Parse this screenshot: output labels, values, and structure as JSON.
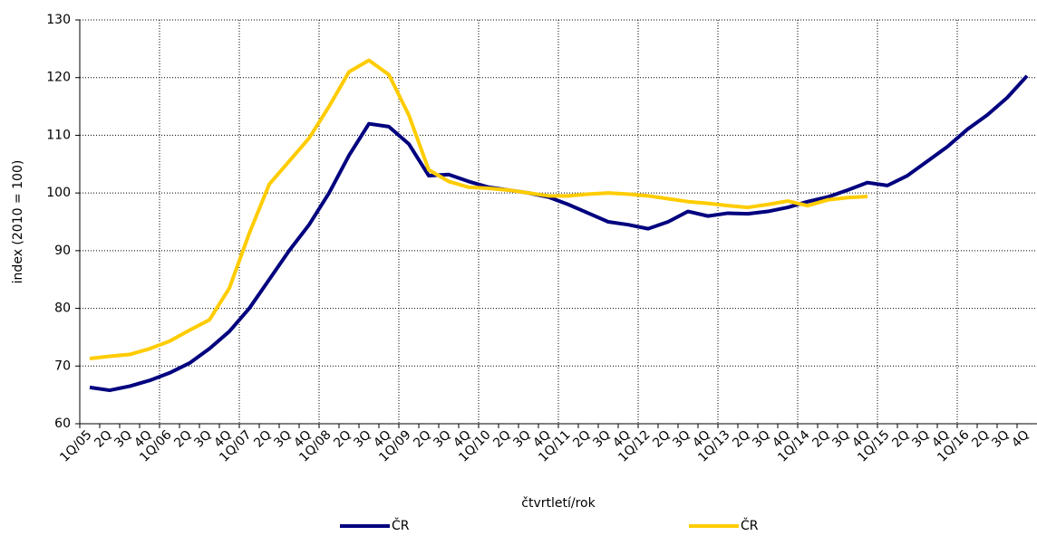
{
  "chart_data": {
    "type": "line",
    "y_label": "index (2010 = 100)",
    "x_label": "čtvrtletí/rok",
    "categories": [
      "1Q/05",
      "2Q",
      "3Q",
      "4Q",
      "1Q/06",
      "2Q",
      "3Q",
      "4Q",
      "1Q/07",
      "2Q",
      "3Q",
      "4Q",
      "1Q/08",
      "2Q",
      "3Q",
      "4Q",
      "1Q/09",
      "2Q",
      "3Q",
      "4Q",
      "1Q/10",
      "2Q",
      "3Q",
      "4Q",
      "1Q/11",
      "2Q",
      "3Q",
      "4Q",
      "1Q/12",
      "2Q",
      "3Q",
      "4Q",
      "1Q/13",
      "2Q",
      "3Q",
      "4Q",
      "1Q/14",
      "2Q",
      "3Q",
      "4Q",
      "1Q/15",
      "2Q",
      "3Q",
      "4Q",
      "1Q/16",
      "2Q",
      "3Q",
      "4Q"
    ],
    "series": [
      {
        "name": "ČR",
        "color": "#00007f",
        "values": [
          66.3,
          65.8,
          66.5,
          67.5,
          68.8,
          70.5,
          73,
          76,
          80,
          85,
          90,
          94.5,
          100,
          106.5,
          112,
          111.5,
          108.5,
          103,
          103.2,
          102,
          101,
          100.5,
          100,
          99.3,
          98,
          96.5,
          95,
          94.5,
          93.8,
          95,
          96.8,
          96,
          96.5,
          96.4,
          96.8,
          97.5,
          98.5,
          99.3,
          100.5,
          101.8,
          101.3,
          103,
          105.5,
          108,
          111,
          113.5,
          116.5,
          120.3
        ]
      },
      {
        "name": "ČR",
        "color": "#ffcc00",
        "values": [
          71.3,
          71.7,
          72,
          73,
          74.3,
          76.2,
          78,
          83.5,
          93,
          101.5,
          105.5,
          109.5,
          115,
          121,
          123,
          120.5,
          113.5,
          104,
          102,
          101,
          100.8,
          100.5,
          100,
          99.5,
          99.5,
          99.8,
          100,
          99.8,
          99.5,
          99,
          98.5,
          98.2,
          97.8,
          97.5,
          98,
          98.6,
          97.8,
          98.8,
          99.2,
          99.4,
          null,
          null,
          null,
          null,
          null,
          null,
          null,
          null
        ]
      }
    ],
    "ylim": [
      60,
      130
    ],
    "yticks": [
      60,
      70,
      80,
      90,
      100,
      110,
      120,
      130
    ],
    "grid": true,
    "legend": "bottom"
  }
}
